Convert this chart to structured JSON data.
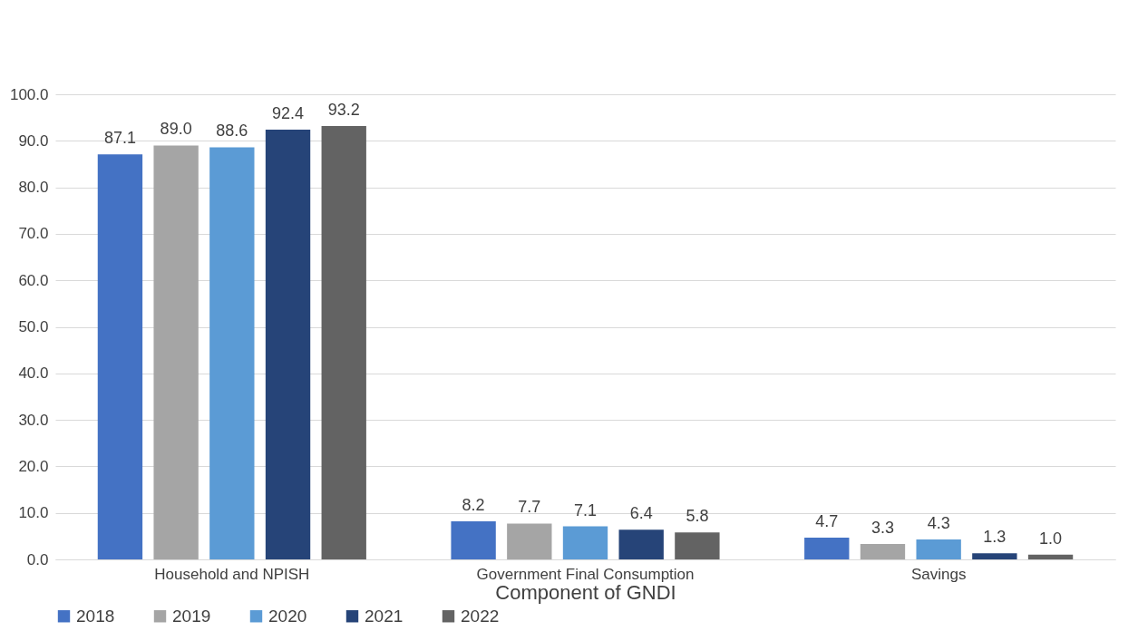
{
  "chart_data": {
    "type": "bar",
    "xlabel": "Component of GNDI",
    "categories": [
      "Household and NPISH",
      "Government Final Consumption",
      "Savings"
    ],
    "series": [
      {
        "name": "2018",
        "color": "#4472c4",
        "values": [
          87.1,
          8.2,
          4.7
        ],
        "value_labels": [
          "87.1",
          "8.2",
          "4.7"
        ]
      },
      {
        "name": "2019",
        "color": "#a5a5a5",
        "values": [
          89.0,
          7.7,
          3.3
        ],
        "value_labels": [
          "89.0",
          "7.7",
          "3.3"
        ]
      },
      {
        "name": "2020",
        "color": "#5b9bd5",
        "values": [
          88.6,
          7.1,
          4.3
        ],
        "value_labels": [
          "88.6",
          "7.1",
          "4.3"
        ]
      },
      {
        "name": "2021",
        "color": "#264478",
        "values": [
          92.4,
          6.4,
          1.3
        ],
        "value_labels": [
          "92.4",
          "6.4",
          "1.3"
        ]
      },
      {
        "name": "2022",
        "color": "#636363",
        "values": [
          93.2,
          5.8,
          1.0
        ],
        "value_labels": [
          "93.2",
          "5.8",
          "1.0"
        ]
      }
    ],
    "ylim": [
      0,
      100
    ],
    "yticks": [
      {
        "value": 0,
        "label": "0.0"
      },
      {
        "value": 10,
        "label": "10.0"
      },
      {
        "value": 20,
        "label": "20.0"
      },
      {
        "value": 30,
        "label": "30.0"
      },
      {
        "value": 40,
        "label": "40.0"
      },
      {
        "value": 50,
        "label": "50.0"
      },
      {
        "value": 60,
        "label": "60.0"
      },
      {
        "value": 70,
        "label": "70.0"
      },
      {
        "value": 80,
        "label": "80.0"
      },
      {
        "value": 90,
        "label": "90.0"
      },
      {
        "value": 100,
        "label": "100.0"
      }
    ],
    "grid": "y",
    "legend": "bottom"
  }
}
